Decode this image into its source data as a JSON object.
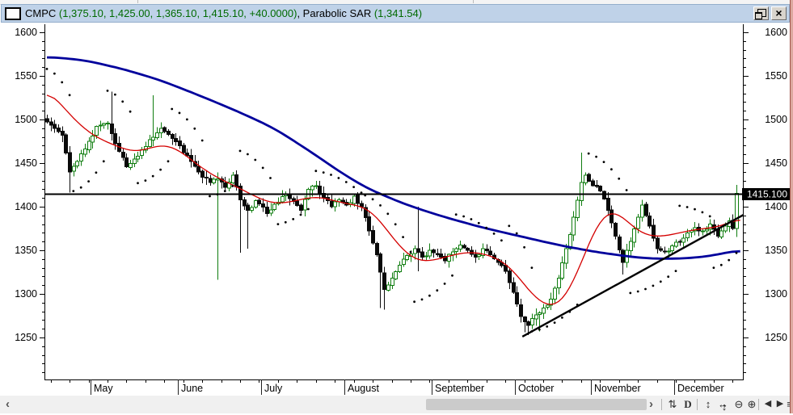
{
  "window": {
    "title": {
      "symbol": "CMPC ",
      "ohlc_values": "(1,375.10, 1,425.00, 1,365.10, 1,415.10, +40.0000)",
      "indicator_name": ", Parabolic SAR ",
      "indicator_value": "(1,341.54)"
    },
    "close_glyph": "×",
    "accent_titlebar": "#bfd2e8",
    "value_text_color": "#006a00"
  },
  "scrollbar": {
    "left_arrow": "‹",
    "right_arrow": "›"
  },
  "toolbar": {
    "icons": [
      {
        "name": "rescale-icon",
        "glyph": "⇅"
      },
      {
        "name": "periodicity-daily-icon",
        "glyph": "D"
      },
      {
        "name": "vertical-fit-icon",
        "glyph": "↕"
      },
      {
        "name": "pan-icon",
        "glyph": "↔",
        "glyph2": "↕"
      },
      {
        "name": "zoom-out-icon",
        "glyph": "⊖"
      },
      {
        "name": "zoom-in-icon",
        "glyph": "⊕"
      },
      {
        "name": "prev-chart-icon",
        "glyph": "◀"
      },
      {
        "name": "next-chart-icon",
        "glyph": "▶"
      },
      {
        "name": "chart-list-icon",
        "glyph": "≡"
      }
    ]
  },
  "chart_data": {
    "type": "candlestick",
    "symbol": "CMPC",
    "periodicity": "daily",
    "days": 183,
    "last_bar": {
      "open": 1375.1,
      "high": 1425.0,
      "low": 1365.1,
      "close": 1415.1,
      "change": "+40.0000"
    },
    "indicator": {
      "name": "Parabolic SAR",
      "value": 1341.54
    },
    "horizontal_line_value": 1415.1,
    "price_tag_label": "1415.100",
    "y_axis_labels": [
      1600,
      1550,
      1500,
      1450,
      1400,
      1350,
      1300,
      1250
    ],
    "y_axis": {
      "major_step": 50,
      "minor_step": 10,
      "visible_min": 1210,
      "visible_max": 1605
    },
    "x_tick_interval_days": 5,
    "months": [
      {
        "label": "May",
        "day": 12
      },
      {
        "label": "June",
        "day": 35
      },
      {
        "label": "July",
        "day": 57
      },
      {
        "label": "August",
        "day": 79
      },
      {
        "label": "September",
        "day": 102
      },
      {
        "label": "October",
        "day": 124
      },
      {
        "label": "November",
        "day": 144
      },
      {
        "label": "December",
        "day": 166
      }
    ],
    "close_anchors": [
      [
        0,
        1497
      ],
      [
        2,
        1490
      ],
      [
        4,
        1482
      ],
      [
        6,
        1440
      ],
      [
        8,
        1452
      ],
      [
        10,
        1466
      ],
      [
        13,
        1492
      ],
      [
        16,
        1496
      ],
      [
        18,
        1472
      ],
      [
        21,
        1446
      ],
      [
        24,
        1458
      ],
      [
        27,
        1477
      ],
      [
        30,
        1490
      ],
      [
        32,
        1483
      ],
      [
        35,
        1470
      ],
      [
        38,
        1452
      ],
      [
        41,
        1434
      ],
      [
        43,
        1428
      ],
      [
        45,
        1432
      ],
      [
        47,
        1422
      ],
      [
        49,
        1436
      ],
      [
        51,
        1408
      ],
      [
        53,
        1396
      ],
      [
        55,
        1407
      ],
      [
        58,
        1392
      ],
      [
        60,
        1403
      ],
      [
        63,
        1414
      ],
      [
        65,
        1406
      ],
      [
        67,
        1396
      ],
      [
        69,
        1420
      ],
      [
        71,
        1424
      ],
      [
        73,
        1410
      ],
      [
        75,
        1400
      ],
      [
        77,
        1408
      ],
      [
        79,
        1402
      ],
      [
        81,
        1412
      ],
      [
        83,
        1400
      ],
      [
        85,
        1372
      ],
      [
        87,
        1345
      ],
      [
        89,
        1305
      ],
      [
        91,
        1318
      ],
      [
        93,
        1333
      ],
      [
        95,
        1344
      ],
      [
        97,
        1352
      ],
      [
        99,
        1342
      ],
      [
        101,
        1350
      ],
      [
        103,
        1345
      ],
      [
        105,
        1338
      ],
      [
        107,
        1348
      ],
      [
        109,
        1356
      ],
      [
        111,
        1350
      ],
      [
        113,
        1342
      ],
      [
        115,
        1352
      ],
      [
        117,
        1345
      ],
      [
        119,
        1336
      ],
      [
        121,
        1326
      ],
      [
        123,
        1302
      ],
      [
        125,
        1274
      ],
      [
        127,
        1264
      ],
      [
        129,
        1276
      ],
      [
        131,
        1284
      ],
      [
        133,
        1294
      ],
      [
        135,
        1318
      ],
      [
        137,
        1352
      ],
      [
        139,
        1388
      ],
      [
        141,
        1428
      ],
      [
        142,
        1436
      ],
      [
        144,
        1424
      ],
      [
        146,
        1418
      ],
      [
        148,
        1396
      ],
      [
        150,
        1366
      ],
      [
        152,
        1336
      ],
      [
        154,
        1360
      ],
      [
        156,
        1388
      ],
      [
        157,
        1402
      ],
      [
        159,
        1378
      ],
      [
        161,
        1352
      ],
      [
        163,
        1348
      ],
      [
        165,
        1355
      ],
      [
        167,
        1360
      ],
      [
        169,
        1370
      ],
      [
        171,
        1376
      ],
      [
        173,
        1372
      ],
      [
        175,
        1380
      ],
      [
        177,
        1366
      ],
      [
        179,
        1378
      ],
      [
        180,
        1384
      ],
      [
        181,
        1375.1
      ],
      [
        182,
        1415.1
      ]
    ],
    "wick_overrides": [
      {
        "day": 6,
        "low": 1416
      },
      {
        "day": 17,
        "high": 1532
      },
      {
        "day": 28,
        "high": 1528
      },
      {
        "day": 45,
        "low": 1316
      },
      {
        "day": 51,
        "low": 1347
      },
      {
        "day": 53,
        "low": 1352
      },
      {
        "day": 88,
        "low": 1284
      },
      {
        "day": 89,
        "low": 1282
      },
      {
        "day": 98,
        "high": 1400,
        "low": 1326
      },
      {
        "day": 120,
        "low": 1330
      },
      {
        "day": 126,
        "low": 1256
      },
      {
        "day": 127,
        "low": 1253
      },
      {
        "day": 130,
        "low": 1257
      },
      {
        "day": 141,
        "high": 1462
      },
      {
        "day": 152,
        "low": 1322
      },
      {
        "day": 157,
        "high": 1408
      }
    ],
    "ma_long_anchors": [
      [
        0,
        1572
      ],
      [
        10,
        1568
      ],
      [
        20,
        1558
      ],
      [
        30,
        1545
      ],
      [
        40,
        1528
      ],
      [
        50,
        1510
      ],
      [
        60,
        1490
      ],
      [
        70,
        1462
      ],
      [
        78,
        1438
      ],
      [
        85,
        1420
      ],
      [
        95,
        1402
      ],
      [
        105,
        1388
      ],
      [
        115,
        1376
      ],
      [
        125,
        1366
      ],
      [
        135,
        1356
      ],
      [
        145,
        1348
      ],
      [
        155,
        1342
      ],
      [
        162,
        1340
      ],
      [
        170,
        1341
      ],
      [
        176,
        1344
      ],
      [
        182,
        1350
      ]
    ],
    "ma_short_anchors": [
      [
        0,
        1540
      ],
      [
        3,
        1520
      ],
      [
        6,
        1506
      ],
      [
        9,
        1492
      ],
      [
        12,
        1482
      ],
      [
        15,
        1475
      ],
      [
        18,
        1471
      ],
      [
        21,
        1464
      ],
      [
        24,
        1462
      ],
      [
        27,
        1467
      ],
      [
        30,
        1472
      ],
      [
        33,
        1470
      ],
      [
        36,
        1462
      ],
      [
        39,
        1450
      ],
      [
        42,
        1441
      ],
      [
        45,
        1433
      ],
      [
        48,
        1427
      ],
      [
        51,
        1421
      ],
      [
        54,
        1414
      ],
      [
        57,
        1407
      ],
      [
        60,
        1403
      ],
      [
        63,
        1404
      ],
      [
        66,
        1407
      ],
      [
        69,
        1411
      ],
      [
        72,
        1412
      ],
      [
        75,
        1408
      ],
      [
        78,
        1404
      ],
      [
        81,
        1402
      ],
      [
        84,
        1401
      ],
      [
        87,
        1390
      ],
      [
        90,
        1372
      ],
      [
        93,
        1354
      ],
      [
        96,
        1341
      ],
      [
        99,
        1336
      ],
      [
        102,
        1338
      ],
      [
        105,
        1342
      ],
      [
        108,
        1346
      ],
      [
        111,
        1348
      ],
      [
        114,
        1348
      ],
      [
        117,
        1344
      ],
      [
        120,
        1339
      ],
      [
        123,
        1329
      ],
      [
        126,
        1310
      ],
      [
        129,
        1294
      ],
      [
        132,
        1285
      ],
      [
        134,
        1283
      ],
      [
        136,
        1289
      ],
      [
        138,
        1303
      ],
      [
        140,
        1323
      ],
      [
        142,
        1347
      ],
      [
        144,
        1369
      ],
      [
        146,
        1388
      ],
      [
        148,
        1398
      ],
      [
        150,
        1397
      ],
      [
        152,
        1389
      ],
      [
        154,
        1379
      ],
      [
        156,
        1371
      ],
      [
        158,
        1367
      ],
      [
        160,
        1365
      ],
      [
        163,
        1366
      ],
      [
        166,
        1369
      ],
      [
        169,
        1372
      ],
      [
        172,
        1375
      ],
      [
        175,
        1375
      ],
      [
        178,
        1377
      ],
      [
        180,
        1381
      ],
      [
        182,
        1388
      ]
    ],
    "sar_segments": [
      {
        "side": "above",
        "d0": 0,
        "d1": 6,
        "v0": 1558,
        "v1": 1528
      },
      {
        "side": "below",
        "d0": 7,
        "d1": 15,
        "v0": 1418,
        "v1": 1452
      },
      {
        "side": "above",
        "d0": 16,
        "d1": 23,
        "v0": 1533,
        "v1": 1502
      },
      {
        "side": "below",
        "d0": 24,
        "d1": 32,
        "v0": 1427,
        "v1": 1452
      },
      {
        "side": "above",
        "d0": 33,
        "d1": 42,
        "v0": 1512,
        "v1": 1468
      },
      {
        "side": "below",
        "d0": 43,
        "d1": 50,
        "v0": 1412,
        "v1": 1427
      },
      {
        "side": "above",
        "d0": 51,
        "d1": 60,
        "v0": 1464,
        "v1": 1426
      },
      {
        "side": "below",
        "d0": 61,
        "d1": 70,
        "v0": 1380,
        "v1": 1401
      },
      {
        "side": "above",
        "d0": 71,
        "d1": 83,
        "v0": 1441,
        "v1": 1416
      },
      {
        "side": "above",
        "d0": 84,
        "d1": 96,
        "v0": 1413,
        "v1": 1348
      },
      {
        "side": "below",
        "d0": 97,
        "d1": 107,
        "v0": 1291,
        "v1": 1321
      },
      {
        "side": "above",
        "d0": 108,
        "d1": 121,
        "v0": 1391,
        "v1": 1357
      },
      {
        "side": "above",
        "d0": 122,
        "d1": 128,
        "v0": 1378,
        "v1": 1330
      },
      {
        "side": "below",
        "d0": 128,
        "d1": 141,
        "v0": 1257,
        "v1": 1292
      },
      {
        "side": "above",
        "d0": 143,
        "d1": 153,
        "v0": 1461,
        "v1": 1419
      },
      {
        "side": "below",
        "d0": 154,
        "d1": 167,
        "v0": 1301,
        "v1": 1330
      },
      {
        "side": "above",
        "d0": 167,
        "d1": 175,
        "v0": 1401,
        "v1": 1389
      },
      {
        "side": "below",
        "d0": 176,
        "d1": 183,
        "v0": 1330,
        "v1": 1352
      }
    ],
    "trendline": {
      "d0": 125.5,
      "v0": 1251,
      "d1": 184,
      "v1": 1391
    },
    "colors": {
      "up_candle": "#0f7d0f",
      "down_candle": "#0a0a0a",
      "ma_long": "#00009c",
      "ma_short": "#d40000",
      "sar_dot": "#000000",
      "line_objects": "#000000"
    }
  }
}
